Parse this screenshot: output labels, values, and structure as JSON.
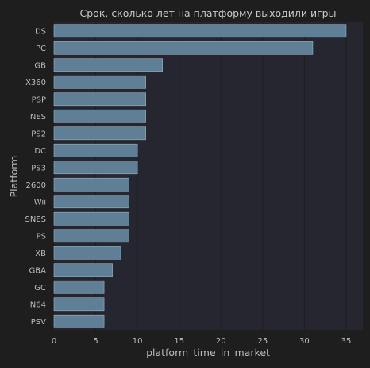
{
  "colors": {
    "page_background": "#1e1e1f",
    "plot_background": "#262630",
    "bar_fill": "#5f7f96",
    "bar_stroke": "#9fb3c2",
    "grid": "#1d1d22",
    "text": "#bdbdbd"
  },
  "chart_data": {
    "type": "bar",
    "orientation": "horizontal",
    "title": "Срок, сколько лет на платформу выходили игры",
    "xlabel": "platform_time_in_market",
    "ylabel": "Platform",
    "xlim": [
      0,
      37
    ],
    "xticks": [
      0,
      5,
      10,
      15,
      20,
      25,
      30,
      35
    ],
    "grid": true,
    "categories": [
      "DS",
      "PC",
      "GB",
      "X360",
      "PSP",
      "NES",
      "PS2",
      "DC",
      "PS3",
      "2600",
      "Wii",
      "SNES",
      "PS",
      "XB",
      "GBA",
      "GC",
      "N64",
      "PSV"
    ],
    "values": [
      35,
      31,
      13,
      11,
      11,
      11,
      11,
      10,
      10,
      9,
      9,
      9,
      9,
      8,
      7,
      6,
      6,
      6
    ]
  }
}
